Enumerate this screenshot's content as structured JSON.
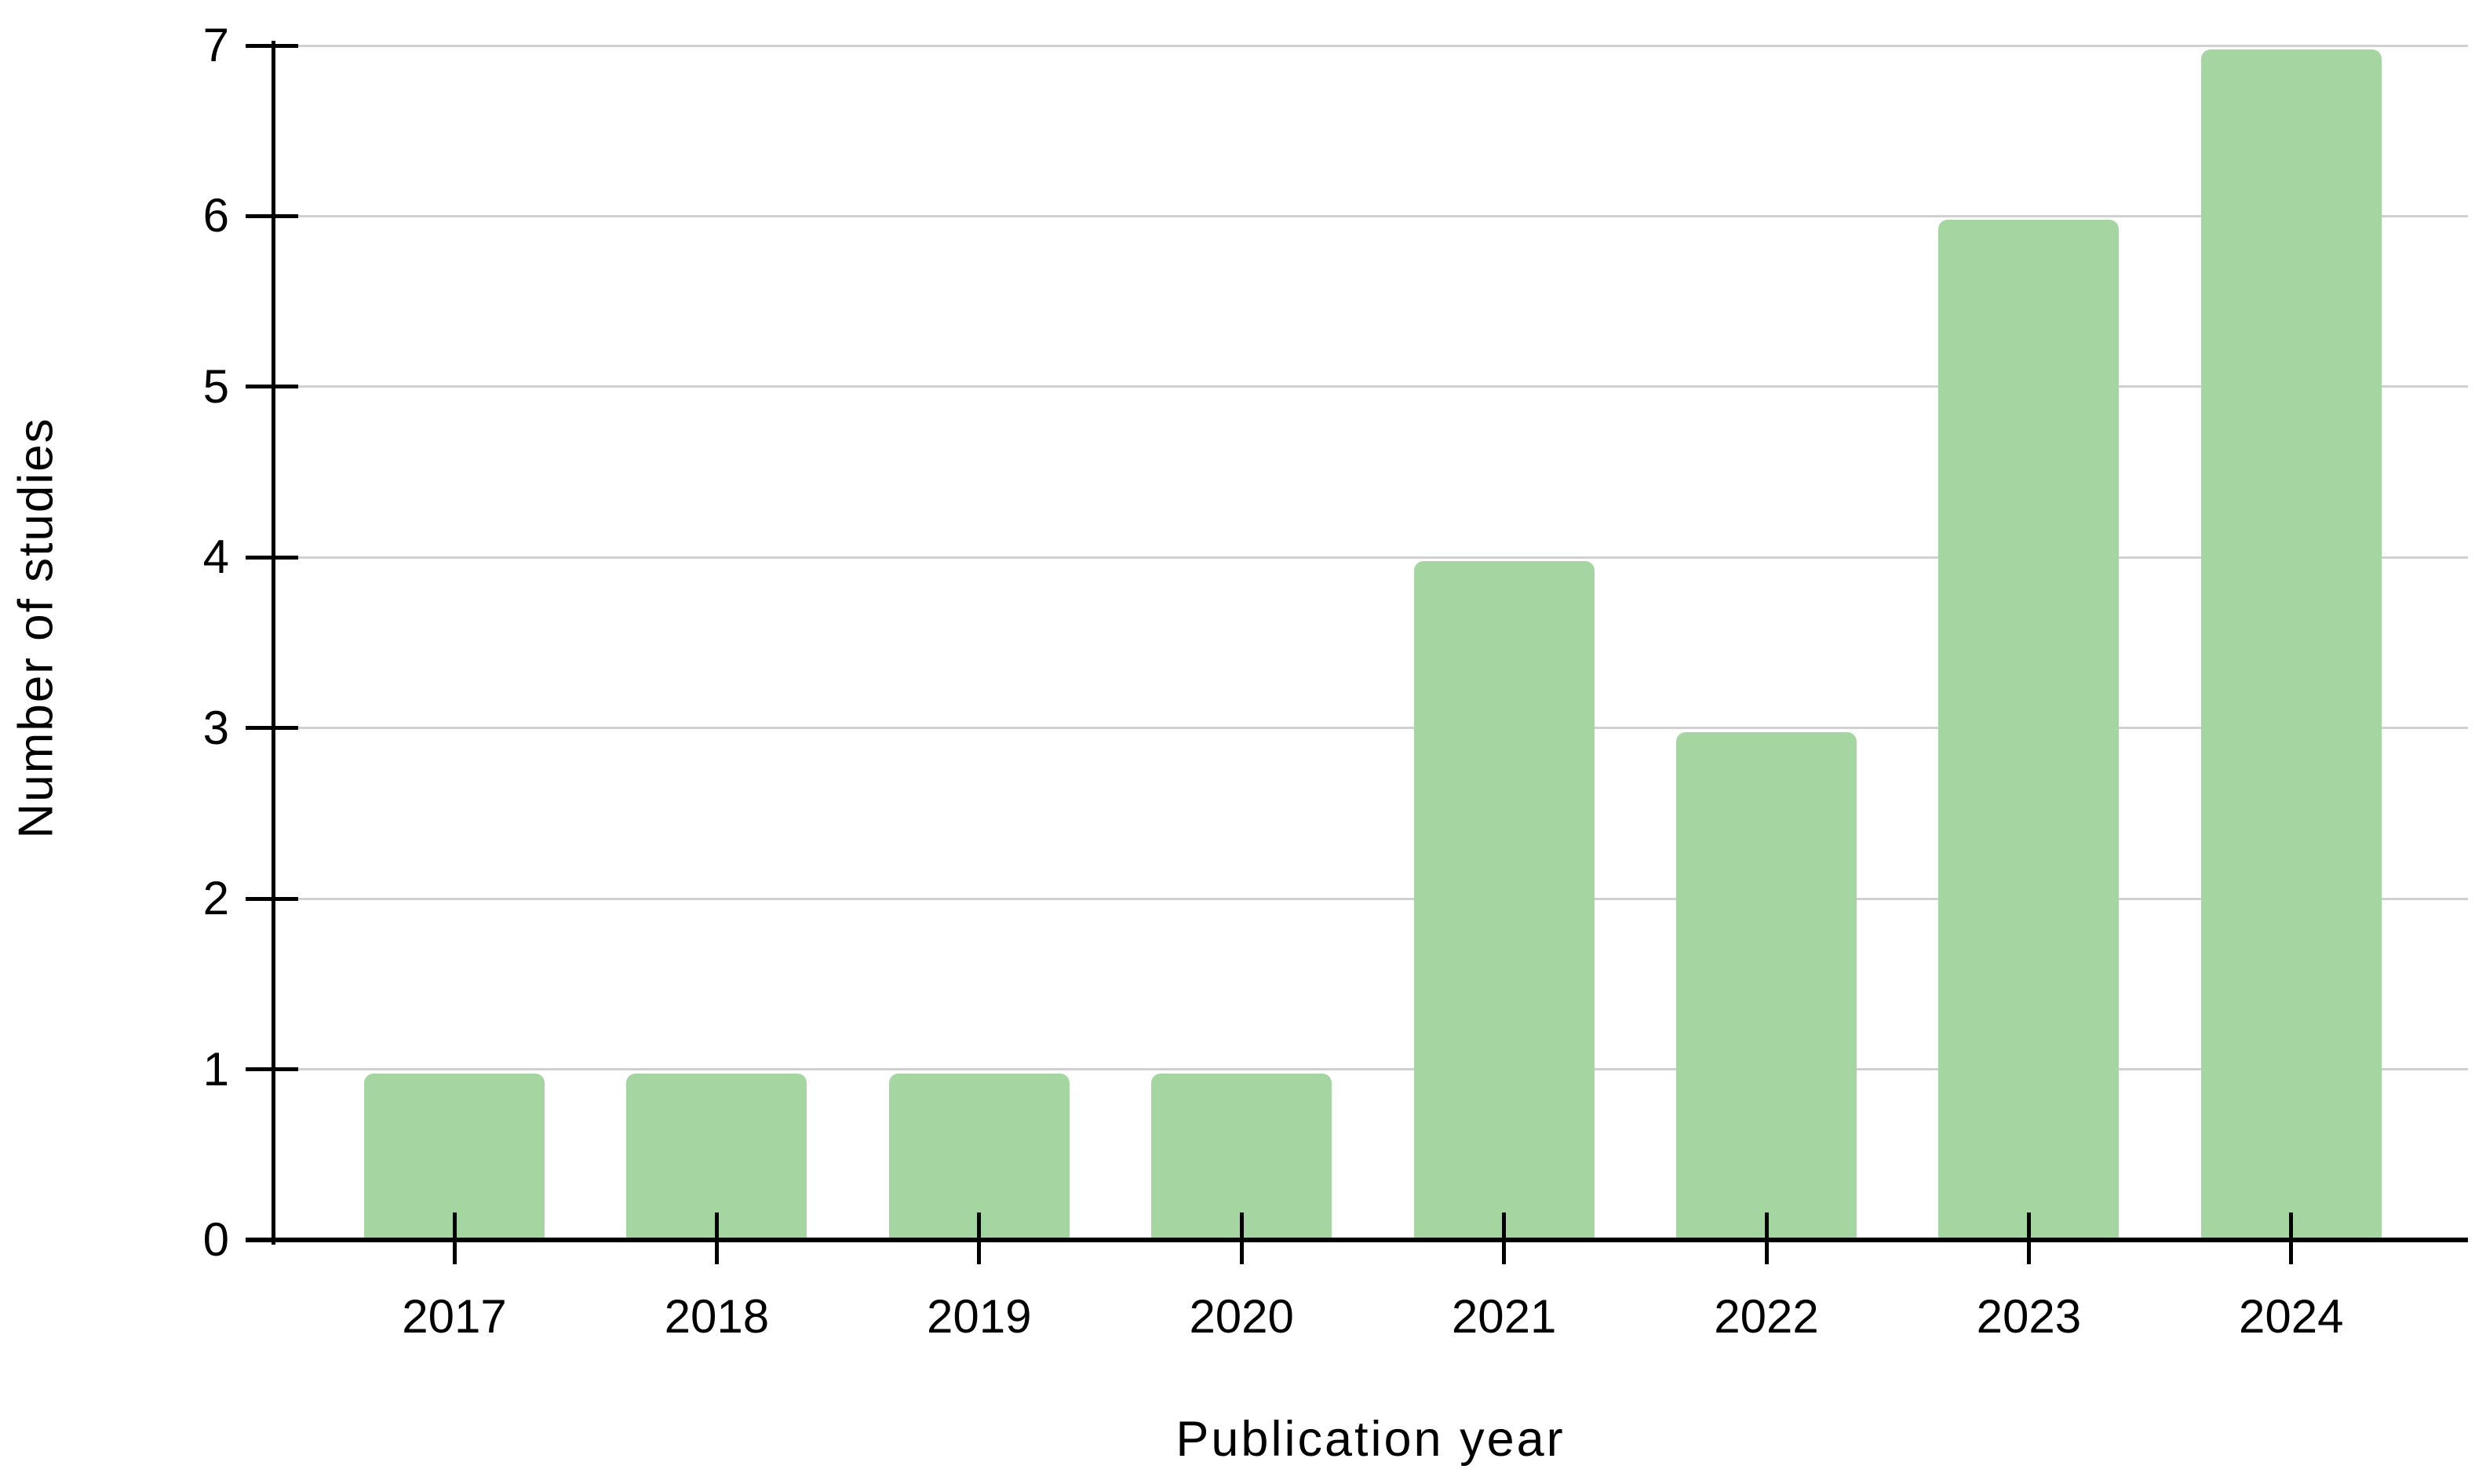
{
  "chart_data": {
    "type": "bar",
    "categories": [
      "2017",
      "2018",
      "2019",
      "2020",
      "2021",
      "2022",
      "2023",
      "2024"
    ],
    "values": [
      1,
      1,
      1,
      1,
      4,
      3,
      6,
      7
    ],
    "title": "",
    "xlabel": "Publication year",
    "ylabel": "Number of studies",
    "ylim": [
      0,
      7
    ],
    "yticks": [
      0,
      1,
      2,
      3,
      4,
      5,
      6,
      7
    ],
    "grid": "horizontal-major",
    "legend": "none",
    "bar_color": "#a5d5a0",
    "gridline_color": "#d1d1d1",
    "axis_color": "#000000",
    "text_color": "#000000"
  }
}
